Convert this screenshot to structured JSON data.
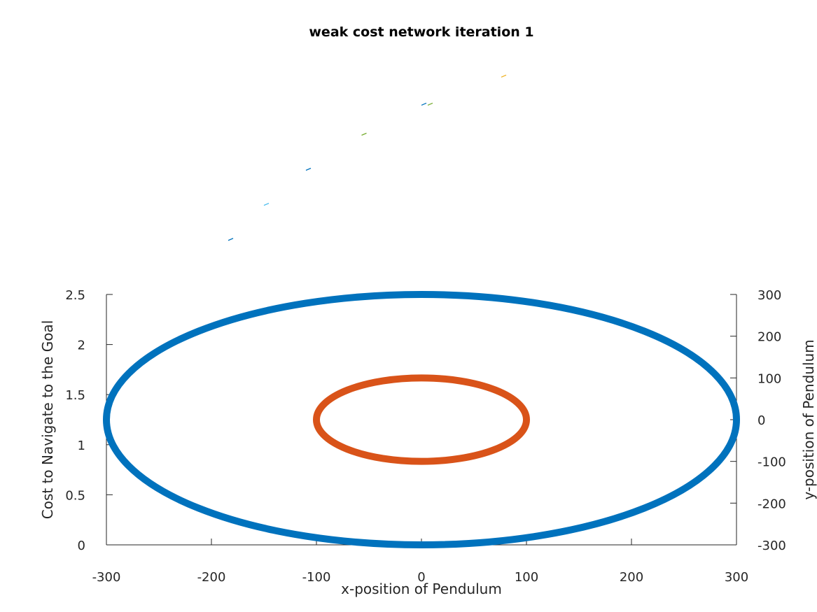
{
  "chart_data": {
    "type": "line",
    "title": "weak cost network iteration 1",
    "xlabel": "x-position of Pendulum",
    "ylabel_left": "Cost to Navigate to the Goal",
    "ylabel_right": "y-position of Pendulum",
    "xlim": [
      -300,
      300
    ],
    "ylim_left": [
      0,
      2.5
    ],
    "ylim_right": [
      -300,
      300
    ],
    "x_ticks": [
      "-300",
      "-200",
      "-100",
      "0",
      "100",
      "200",
      "300"
    ],
    "y_ticks_left": [
      "0",
      "0.5",
      "1",
      "1.5",
      "2",
      "2.5"
    ],
    "y_ticks_right": [
      "-300",
      "-200",
      "-100",
      "0",
      "100",
      "200",
      "300"
    ],
    "grid": false,
    "series": [
      {
        "color": "#0072BD",
        "shape": "circle",
        "center": [
          0,
          0
        ],
        "radius": 300
      },
      {
        "color": "#D95319",
        "shape": "circle",
        "center": [
          0,
          0
        ],
        "radius": 100
      }
    ],
    "trajectory_marks": [
      {
        "x": -182,
        "y_left": 3.05,
        "color": "#0072BD"
      },
      {
        "x": -148,
        "y_left": 3.4,
        "color": "#4DBEEE"
      },
      {
        "x": -108,
        "y_left": 3.75,
        "color": "#0072BD"
      },
      {
        "x": -55,
        "y_left": 4.1,
        "color": "#77AC30"
      },
      {
        "x": 2,
        "y_left": 4.4,
        "color": "#0072BD"
      },
      {
        "x": 8,
        "y_left": 4.4,
        "color": "#77AC30"
      },
      {
        "x": 78,
        "y_left": 4.68,
        "color": "#EDB120"
      }
    ]
  }
}
